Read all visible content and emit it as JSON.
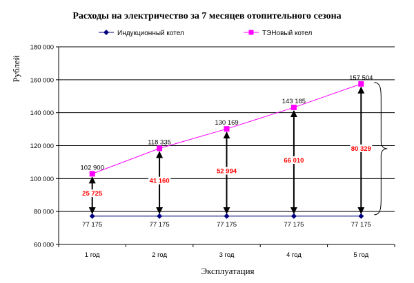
{
  "chart_data": {
    "type": "line",
    "title": "Расходы на электричество за 7 месяцев отопительного сезона",
    "xlabel": "Эксплуатация",
    "ylabel": "Рублей",
    "categories": [
      "1 год",
      "2 год",
      "3 год",
      "4 год",
      "5 год"
    ],
    "ylim": [
      60000,
      180000
    ],
    "yticks": [
      60000,
      80000,
      100000,
      120000,
      140000,
      160000,
      180000
    ],
    "ytick_labels": [
      "60 000",
      "80 000",
      "100 000",
      "120 000",
      "140 000",
      "160 000",
      "180 000"
    ],
    "grid": true,
    "legend_position": "top",
    "series": [
      {
        "name": "Индукционный котел",
        "values": [
          77175,
          77175,
          77175,
          77175,
          77175
        ],
        "labels": [
          "77 175",
          "77 175",
          "77 175",
          "77 175",
          "77 175"
        ],
        "color": "#000080",
        "marker": "diamond"
      },
      {
        "name": "ТЭНовый котел",
        "values": [
          102900,
          118335,
          130169,
          143185,
          157504
        ],
        "labels": [
          "102 900",
          "118 335",
          "130 169",
          "143 185",
          "157 504"
        ],
        "color": "#ff00ff",
        "marker": "square"
      }
    ],
    "differences": {
      "values": [
        25725,
        41160,
        52994,
        66010,
        80329
      ],
      "labels": [
        "25 725",
        "41 160",
        "52 994",
        "66 010",
        "80 329"
      ],
      "color": "#ff0000"
    }
  }
}
